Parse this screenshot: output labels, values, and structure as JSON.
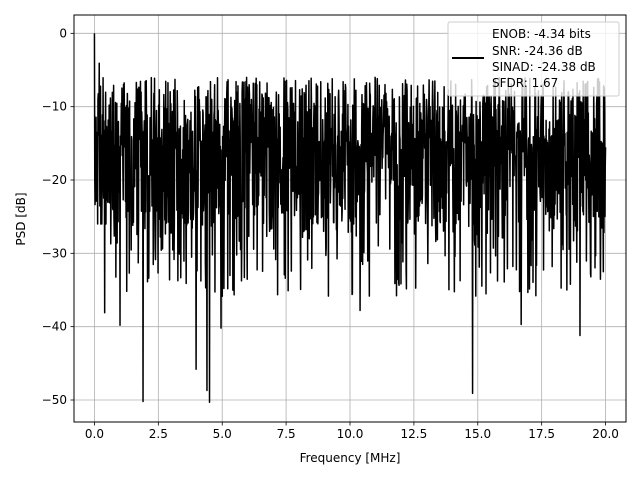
{
  "chart_data": {
    "type": "line",
    "title": "",
    "xlabel": "Frequency [MHz]",
    "ylabel": "PSD [dB]",
    "xlim": [
      -0.8,
      20.8
    ],
    "ylim": [
      -53,
      2.5
    ],
    "x_ticks": [
      0.0,
      2.5,
      5.0,
      7.5,
      10.0,
      12.5,
      15.0,
      17.5,
      20.0
    ],
    "x_tick_labels": [
      "0.0",
      "2.5",
      "5.0",
      "7.5",
      "10.0",
      "12.5",
      "15.0",
      "17.5",
      "20.0"
    ],
    "y_ticks": [
      0,
      -10,
      -20,
      -30,
      -40,
      -50
    ],
    "y_tick_labels": [
      "0",
      "−10",
      "−20",
      "−30",
      "−40",
      "−50"
    ],
    "grid": true,
    "legend_position": "top-right",
    "legend_lines": [
      "ENOB: -4.34 bits",
      "SNR: -24.36 dB",
      "SINAD: -24.38 dB",
      "SFDR: 1.67"
    ],
    "series": [
      {
        "color": "#000000",
        "style": "solid",
        "x_range": [
          0,
          20
        ],
        "points": 1600,
        "description": "noise-like power spectral density, mostly between -5 and -30 dB",
        "peaks": [
          {
            "x": 0.0,
            "y": 0.0
          }
        ],
        "deep_minima": [
          {
            "x": 1.9,
            "y": -50.2
          },
          {
            "x": 4.4,
            "y": -48.7
          },
          {
            "x": 4.5,
            "y": -50.3
          },
          {
            "x": 4.95,
            "y": -40.2
          },
          {
            "x": 3.98,
            "y": -45.8
          },
          {
            "x": 14.8,
            "y": -49.1
          },
          {
            "x": 19.0,
            "y": -41.2
          },
          {
            "x": 1.0,
            "y": -39.8
          },
          {
            "x": 0.4,
            "y": -38.1
          },
          {
            "x": 10.4,
            "y": -37.8
          },
          {
            "x": 16.7,
            "y": -39.7
          }
        ]
      }
    ]
  }
}
